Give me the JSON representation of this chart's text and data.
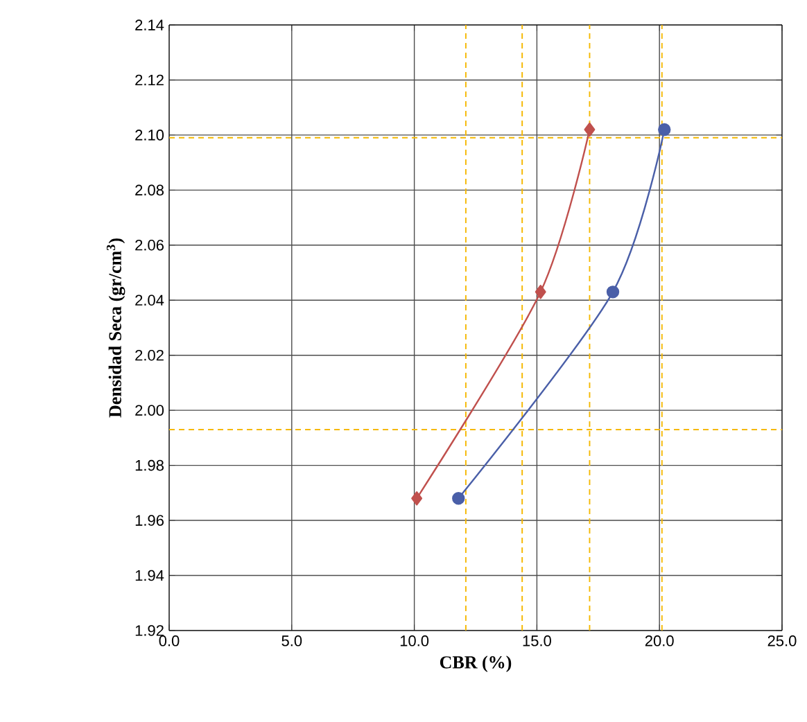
{
  "chart_data": {
    "type": "line",
    "xlabel": "CBR (%)",
    "ylabel": "Densidad Seca (gr/cm$^{3}$)",
    "series": [
      {
        "color": "#c0504d",
        "marker": "diamond",
        "x": [
          10.1,
          15.15,
          17.15
        ],
        "values": [
          1.968,
          2.043,
          2.102
        ]
      },
      {
        "color": "#4a5fa8",
        "marker": "circle",
        "x": [
          11.8,
          18.1,
          20.2
        ],
        "values": [
          1.968,
          2.043,
          2.102
        ]
      }
    ],
    "xlim": [
      0,
      25
    ],
    "ylim": [
      1.92,
      2.14
    ],
    "xticks": [
      {
        "value": 0,
        "label": "0.0"
      },
      {
        "value": 5,
        "label": "5.0"
      },
      {
        "value": 10,
        "label": "10.0"
      },
      {
        "value": 15,
        "label": "15.0"
      },
      {
        "value": 20,
        "label": "20.0"
      },
      {
        "value": 25,
        "label": "25.0"
      }
    ],
    "yticks": [
      {
        "value": 1.92,
        "label": "1.92"
      },
      {
        "value": 1.94,
        "label": "1.94"
      },
      {
        "value": 1.96,
        "label": "1.96"
      },
      {
        "value": 1.98,
        "label": "1.98"
      },
      {
        "value": 2.0,
        "label": "2.00"
      },
      {
        "value": 2.02,
        "label": "2.02"
      },
      {
        "value": 2.04,
        "label": "2.04"
      },
      {
        "value": 2.06,
        "label": "2.06"
      },
      {
        "value": 2.08,
        "label": "2.08"
      },
      {
        "value": 2.1,
        "label": "2.10"
      },
      {
        "value": 2.12,
        "label": "2.12"
      },
      {
        "value": 2.14,
        "label": "2.14"
      }
    ],
    "grid": true,
    "ref_lines": [
      {
        "axis": "y",
        "value": 2.099,
        "color": "#f5b800",
        "line_style": "dashed"
      },
      {
        "axis": "y",
        "value": 1.993,
        "color": "#f5b800",
        "line_style": "dashed"
      },
      {
        "axis": "x",
        "value": 12.1,
        "color": "#f5b800",
        "line_style": "dashed"
      },
      {
        "axis": "x",
        "value": 14.4,
        "color": "#f5b800",
        "line_style": "dashed"
      },
      {
        "axis": "x",
        "value": 17.15,
        "color": "#f5b800",
        "line_style": "dashed"
      },
      {
        "axis": "x",
        "value": 20.1,
        "color": "#f5b800",
        "line_style": "dashed"
      }
    ]
  }
}
